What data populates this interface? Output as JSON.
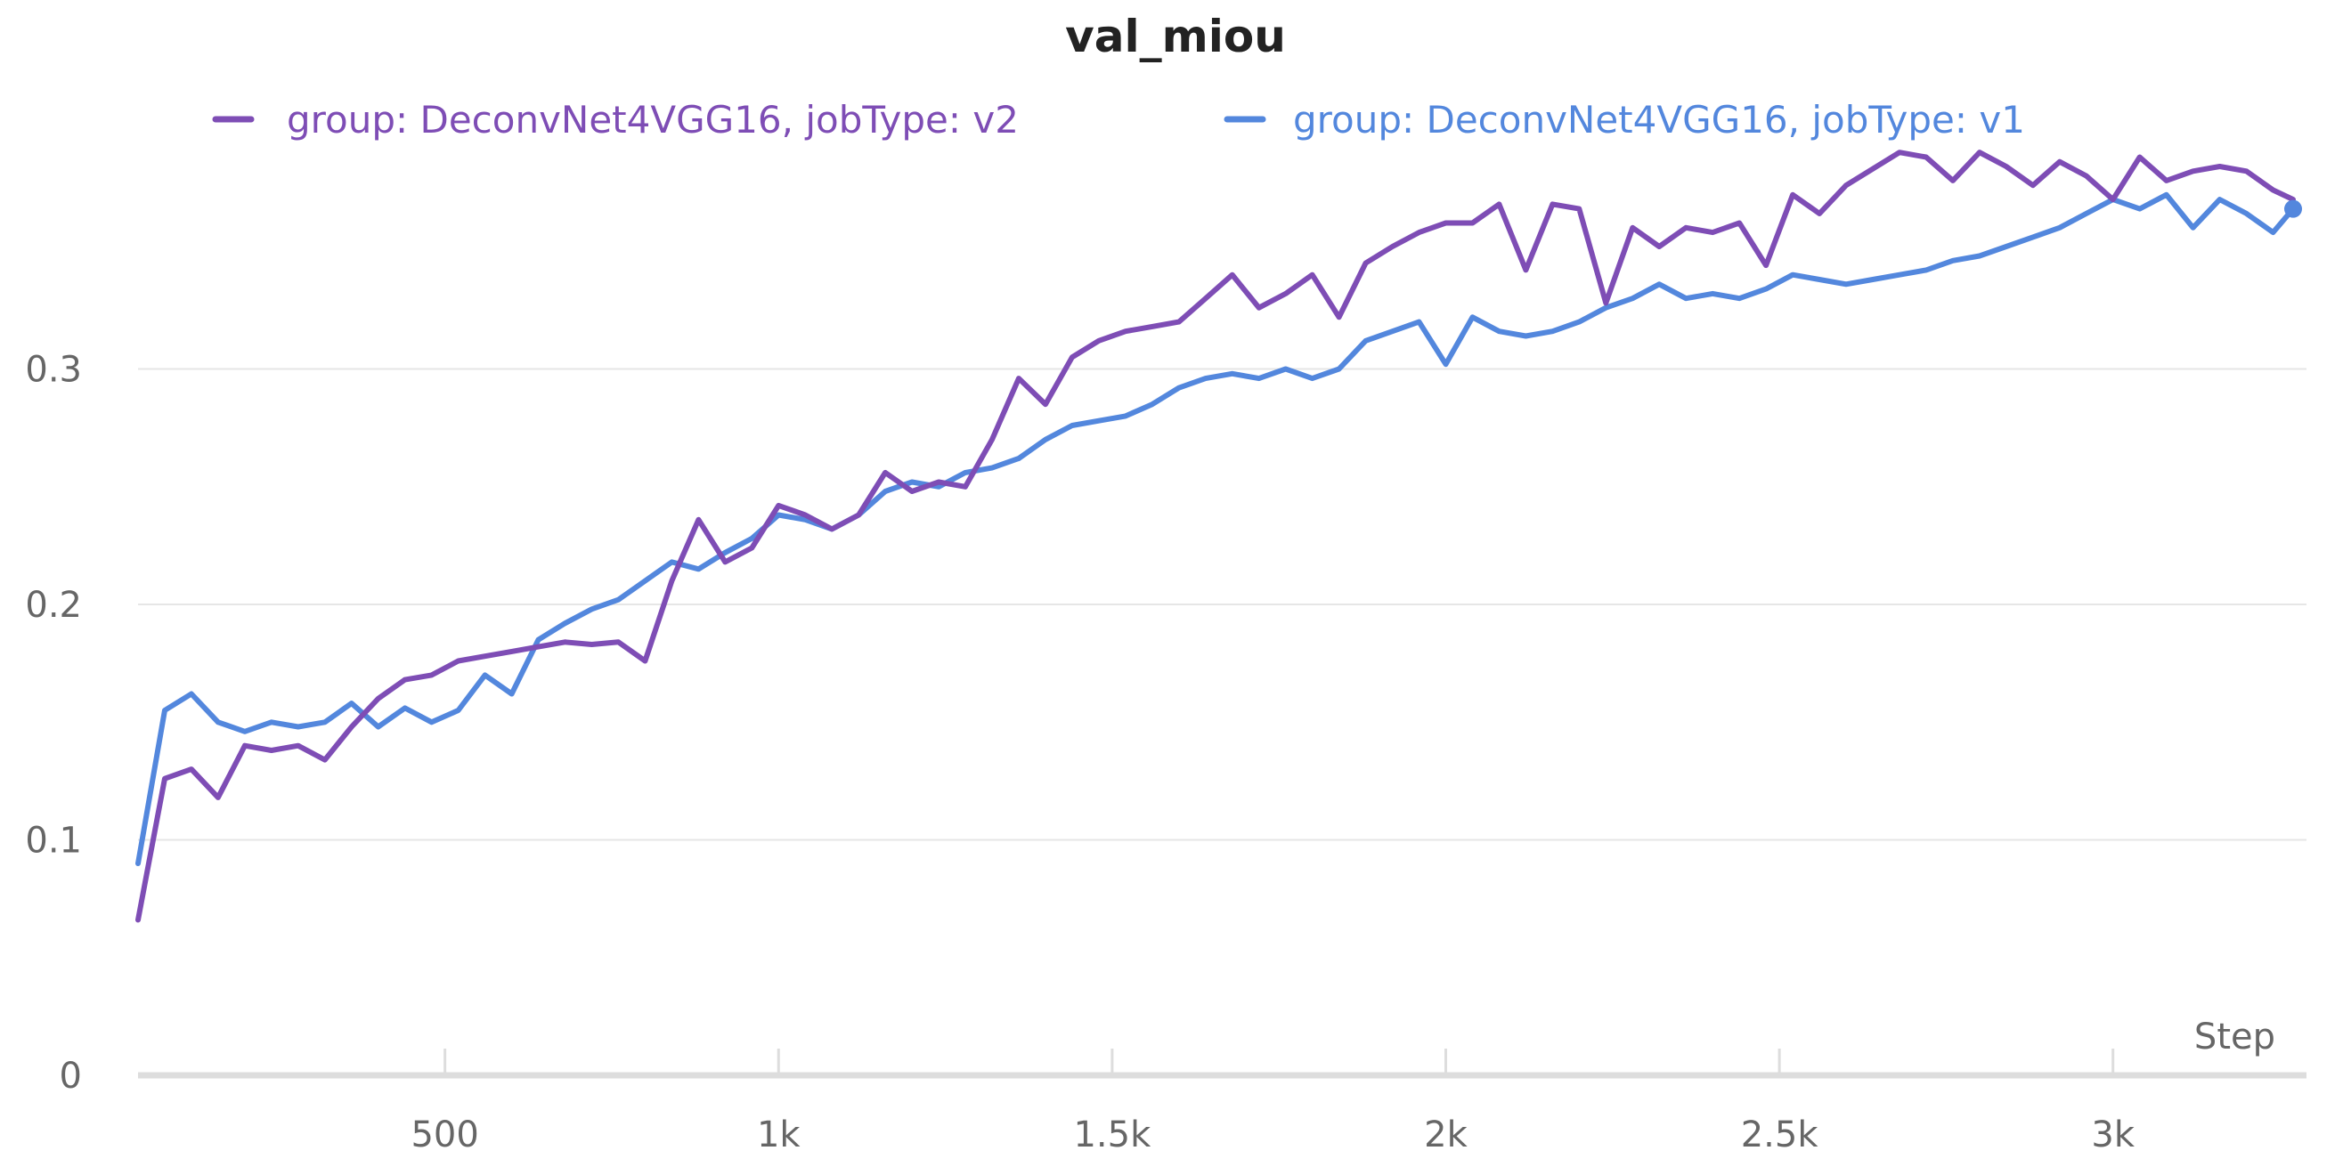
{
  "chart_data": {
    "type": "line",
    "title": "val_miou",
    "xlabel": "Step",
    "ylabel": "",
    "xlim": [
      40,
      3290
    ],
    "ylim": [
      0,
      0.4
    ],
    "grid": true,
    "legend_position": "top",
    "x_ticks": [
      500,
      1000,
      1500,
      2000,
      2500,
      3000
    ],
    "x_tick_labels": [
      "500",
      "1k",
      "1.5k",
      "2k",
      "2.5k",
      "3k"
    ],
    "y_ticks": [
      0,
      0.1,
      0.2,
      0.3
    ],
    "y_tick_labels": [
      "0",
      "0.1",
      "0.2",
      "0.3"
    ],
    "series": [
      {
        "name": "group: DeconvNet4VGG16, jobType: v2",
        "color": "#7e4db5",
        "x": [
          40,
          80,
          120,
          160,
          200,
          240,
          280,
          320,
          360,
          400,
          440,
          480,
          520,
          560,
          600,
          640,
          680,
          720,
          760,
          800,
          840,
          880,
          920,
          960,
          1000,
          1040,
          1080,
          1120,
          1160,
          1200,
          1240,
          1280,
          1320,
          1360,
          1400,
          1440,
          1480,
          1520,
          1560,
          1600,
          1640,
          1680,
          1720,
          1760,
          1800,
          1840,
          1880,
          1920,
          1960,
          2000,
          2040,
          2080,
          2120,
          2160,
          2200,
          2240,
          2280,
          2320,
          2360,
          2400,
          2440,
          2480,
          2520,
          2560,
          2600,
          2640,
          2680,
          2720,
          2760,
          2800,
          2840,
          2880,
          2920,
          2960,
          3000,
          3040,
          3080,
          3120,
          3160,
          3200,
          3240,
          3270
        ],
        "y": [
          0.066,
          0.126,
          0.13,
          0.118,
          0.14,
          0.138,
          0.14,
          0.134,
          0.148,
          0.16,
          0.168,
          0.17,
          0.176,
          0.178,
          0.18,
          0.182,
          0.184,
          0.183,
          0.184,
          0.176,
          0.21,
          0.236,
          0.218,
          0.224,
          0.242,
          0.238,
          0.232,
          0.238,
          0.256,
          0.248,
          0.252,
          0.25,
          0.27,
          0.296,
          0.285,
          0.305,
          0.312,
          0.316,
          0.318,
          0.32,
          0.33,
          0.34,
          0.326,
          0.332,
          0.34,
          0.322,
          0.345,
          0.352,
          0.358,
          0.362,
          0.362,
          0.37,
          0.342,
          0.37,
          0.368,
          0.328,
          0.36,
          0.352,
          0.36,
          0.358,
          0.362,
          0.344,
          0.374,
          0.366,
          0.378,
          0.385,
          0.392,
          0.39,
          0.38,
          0.392,
          0.386,
          0.378,
          0.388,
          0.382,
          0.372,
          0.39,
          0.38,
          0.384,
          0.386,
          0.384,
          0.376,
          0.372
        ]
      },
      {
        "name": "group: DeconvNet4VGG16, jobType: v1",
        "color": "#5387dd",
        "x": [
          40,
          80,
          120,
          160,
          200,
          240,
          280,
          320,
          360,
          400,
          440,
          480,
          520,
          560,
          600,
          640,
          680,
          720,
          760,
          800,
          840,
          880,
          920,
          960,
          1000,
          1040,
          1080,
          1120,
          1160,
          1200,
          1240,
          1280,
          1320,
          1360,
          1400,
          1440,
          1480,
          1520,
          1560,
          1600,
          1640,
          1680,
          1720,
          1760,
          1800,
          1840,
          1880,
          1920,
          1960,
          2000,
          2040,
          2080,
          2120,
          2160,
          2200,
          2240,
          2280,
          2320,
          2360,
          2400,
          2440,
          2480,
          2520,
          2560,
          2600,
          2640,
          2680,
          2720,
          2760,
          2800,
          2840,
          2880,
          2920,
          2960,
          3000,
          3040,
          3080,
          3120,
          3160,
          3200,
          3240,
          3270
        ],
        "y": [
          0.09,
          0.155,
          0.162,
          0.15,
          0.146,
          0.15,
          0.148,
          0.15,
          0.158,
          0.148,
          0.156,
          0.15,
          0.155,
          0.17,
          0.162,
          0.185,
          0.192,
          0.198,
          0.202,
          0.21,
          0.218,
          0.215,
          0.222,
          0.228,
          0.238,
          0.236,
          0.232,
          0.238,
          0.248,
          0.252,
          0.25,
          0.256,
          0.258,
          0.262,
          0.27,
          0.276,
          0.278,
          0.28,
          0.285,
          0.292,
          0.296,
          0.298,
          0.296,
          0.3,
          0.296,
          0.3,
          0.312,
          0.316,
          0.32,
          0.302,
          0.322,
          0.316,
          0.314,
          0.316,
          0.32,
          0.326,
          0.33,
          0.336,
          0.33,
          0.332,
          0.33,
          0.334,
          0.34,
          0.338,
          0.336,
          0.338,
          0.34,
          0.342,
          0.346,
          0.348,
          0.352,
          0.356,
          0.36,
          0.366,
          0.372,
          0.368,
          0.374,
          0.36,
          0.372,
          0.366,
          0.358,
          0.368
        ]
      }
    ]
  }
}
